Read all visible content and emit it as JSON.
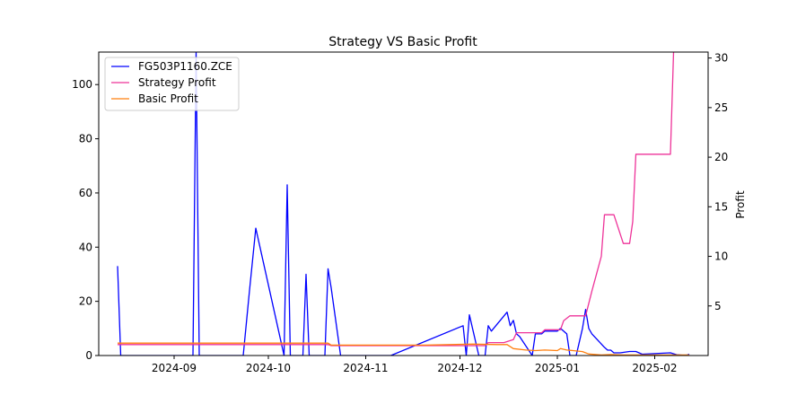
{
  "chart_data": {
    "type": "line",
    "title": "Strategy VS Basic Profit",
    "xlabel": "",
    "ylabel_left": "",
    "ylabel_right": "Profit",
    "x_ticks": [
      "2024-09",
      "2024-10",
      "2024-11",
      "2024-12",
      "2025-01",
      "2025-02"
    ],
    "xlim": [
      "2024-08-08",
      "2025-02-18"
    ],
    "ylim_left": [
      0,
      112
    ],
    "ylim_right": [
      0,
      30.6
    ],
    "y_ticks_left": [
      0,
      20,
      40,
      60,
      80,
      100
    ],
    "y_ticks_right": [
      5,
      10,
      15,
      20,
      25,
      30
    ],
    "legend_position": "top-left",
    "grid": false,
    "series": [
      {
        "name": "FG503P1160.ZCE",
        "axis": "left",
        "color": "#0000ff",
        "points": [
          [
            "2024-08-14",
            33
          ],
          [
            "2024-08-15",
            0
          ],
          [
            "2024-09-07",
            0
          ],
          [
            "2024-09-08",
            112
          ],
          [
            "2024-09-09",
            0
          ],
          [
            "2024-09-23",
            0
          ],
          [
            "2024-09-25",
            24
          ],
          [
            "2024-09-27",
            47
          ],
          [
            "2024-10-06",
            0
          ],
          [
            "2024-10-07",
            63
          ],
          [
            "2024-10-08",
            0
          ],
          [
            "2024-10-12",
            0
          ],
          [
            "2024-10-13",
            30
          ],
          [
            "2024-10-14",
            0
          ],
          [
            "2024-10-19",
            0
          ],
          [
            "2024-10-20",
            32
          ],
          [
            "2024-10-21",
            25
          ],
          [
            "2024-10-24",
            0
          ],
          [
            "2024-11-09",
            0
          ],
          [
            "2024-12-02",
            11
          ],
          [
            "2024-12-03",
            0
          ],
          [
            "2024-12-04",
            15
          ],
          [
            "2024-12-07",
            0
          ],
          [
            "2024-12-09",
            0
          ],
          [
            "2024-12-10",
            11
          ],
          [
            "2024-12-11",
            9
          ],
          [
            "2024-12-16",
            16
          ],
          [
            "2024-12-17",
            11
          ],
          [
            "2024-12-18",
            13
          ],
          [
            "2024-12-19",
            8
          ],
          [
            "2024-12-20",
            7
          ],
          [
            "2024-12-24",
            0
          ],
          [
            "2024-12-25",
            8
          ],
          [
            "2024-12-27",
            8
          ],
          [
            "2024-12-28",
            9
          ],
          [
            "2025-01-01",
            9
          ],
          [
            "2025-01-02",
            10
          ],
          [
            "2025-01-04",
            8
          ],
          [
            "2025-01-05",
            0
          ],
          [
            "2025-01-07",
            0
          ],
          [
            "2025-01-09",
            10
          ],
          [
            "2025-01-10",
            17
          ],
          [
            "2025-01-11",
            10
          ],
          [
            "2025-01-12",
            8
          ],
          [
            "2025-01-16",
            3
          ],
          [
            "2025-01-17",
            2
          ],
          [
            "2025-01-18",
            2
          ],
          [
            "2025-01-19",
            1
          ],
          [
            "2025-01-21",
            1
          ],
          [
            "2025-01-24",
            1.5
          ],
          [
            "2025-01-26",
            1.5
          ],
          [
            "2025-01-28",
            0.5
          ],
          [
            "2025-02-06",
            1
          ],
          [
            "2025-02-08",
            0.3
          ],
          [
            "2025-02-11",
            0
          ],
          [
            "2025-02-12",
            0.5
          ]
        ]
      },
      {
        "name": "Strategy Profit",
        "axis": "right",
        "color": "#ee3399",
        "points": [
          [
            "2024-08-14",
            1.1
          ],
          [
            "2024-10-20",
            1.1
          ],
          [
            "2024-10-21",
            1.0
          ],
          [
            "2024-12-09",
            1.0
          ],
          [
            "2024-12-10",
            1.3
          ],
          [
            "2024-12-15",
            1.3
          ],
          [
            "2024-12-18",
            1.6
          ],
          [
            "2024-12-19",
            2.3
          ],
          [
            "2024-12-20",
            2.3
          ],
          [
            "2024-12-27",
            2.3
          ],
          [
            "2024-12-28",
            2.6
          ],
          [
            "2025-01-02",
            2.6
          ],
          [
            "2025-01-03",
            3.5
          ],
          [
            "2025-01-05",
            4.0
          ],
          [
            "2025-01-09",
            4.0
          ],
          [
            "2025-01-10",
            4.0
          ],
          [
            "2025-01-12",
            6.5
          ],
          [
            "2025-01-15",
            10.0
          ],
          [
            "2025-01-16",
            14.2
          ],
          [
            "2025-01-19",
            14.2
          ],
          [
            "2025-01-22",
            11.3
          ],
          [
            "2025-01-24",
            11.3
          ],
          [
            "2025-01-25",
            13.5
          ],
          [
            "2025-01-26",
            20.3
          ],
          [
            "2025-02-06",
            20.3
          ],
          [
            "2025-02-07",
            30.6
          ]
        ]
      },
      {
        "name": "Basic Profit",
        "axis": "right",
        "color": "#ff7f0e",
        "points": [
          [
            "2024-08-14",
            1.25
          ],
          [
            "2024-10-20",
            1.25
          ],
          [
            "2024-10-21",
            1.05
          ],
          [
            "2024-11-20",
            1.05
          ],
          [
            "2024-12-05",
            1.15
          ],
          [
            "2024-12-13",
            1.1
          ],
          [
            "2024-12-16",
            1.1
          ],
          [
            "2024-12-17",
            0.9
          ],
          [
            "2024-12-18",
            0.7
          ],
          [
            "2024-12-22",
            0.55
          ],
          [
            "2024-12-25",
            0.5
          ],
          [
            "2024-12-28",
            0.55
          ],
          [
            "2025-01-01",
            0.5
          ],
          [
            "2025-01-02",
            0.7
          ],
          [
            "2025-01-04",
            0.55
          ],
          [
            "2025-01-06",
            0.5
          ],
          [
            "2025-01-09",
            0.4
          ],
          [
            "2025-01-11",
            0.15
          ],
          [
            "2025-01-15",
            0.05
          ],
          [
            "2025-01-18",
            0.1
          ],
          [
            "2025-01-22",
            0.05
          ],
          [
            "2025-02-12",
            0.05
          ]
        ]
      }
    ]
  }
}
